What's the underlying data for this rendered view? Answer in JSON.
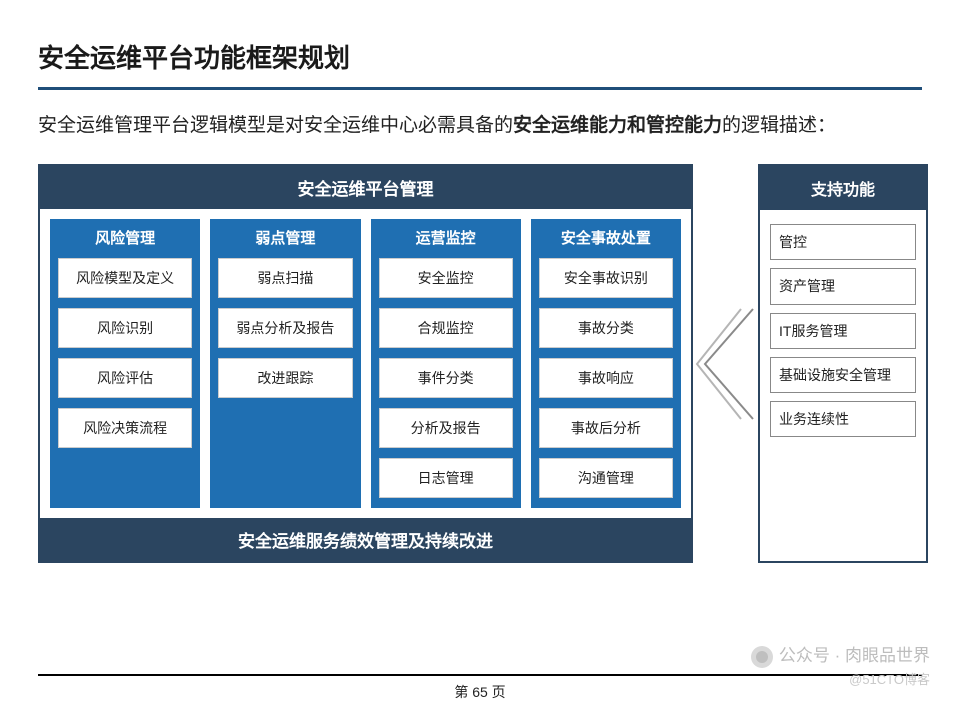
{
  "title": "安全运维平台功能框架规划",
  "subtitle_prefix": "安全运维管理平台逻辑模型是对安全运维中心必需具备的",
  "subtitle_bold": "安全运维能力和管控能力",
  "subtitle_suffix": "的逻辑描述：",
  "platform_header": "安全运维平台管理",
  "platform_footer": "安全运维服务绩效管理及持续改进",
  "columns": [
    {
      "header": "风险管理",
      "items": [
        "风险模型及定义",
        "风险识别",
        "风险评估",
        "风险决策流程"
      ]
    },
    {
      "header": "弱点管理",
      "items": [
        "弱点扫描",
        "弱点分析及报告",
        "改进跟踪"
      ]
    },
    {
      "header": "运营监控",
      "items": [
        "安全监控",
        "合规监控",
        "事件分类",
        "分析及报告",
        "日志管理"
      ]
    },
    {
      "header": "安全事故处置",
      "items": [
        "安全事故识别",
        "事故分类",
        "事故响应",
        "事故后分析",
        "沟通管理"
      ]
    }
  ],
  "support": {
    "header": "支持功能",
    "items": [
      "管控",
      "资产管理",
      "IT服务管理",
      "基础设施安全管理",
      "业务连续性"
    ]
  },
  "page_number": "第 65 页",
  "watermark_main": "公众号 · 肉眼品世界",
  "watermark_sub": "@51CTO博客",
  "colors": {
    "header_dark": "#2b4560",
    "column_blue": "#1f6fb2",
    "rule": "#1f4e79"
  }
}
